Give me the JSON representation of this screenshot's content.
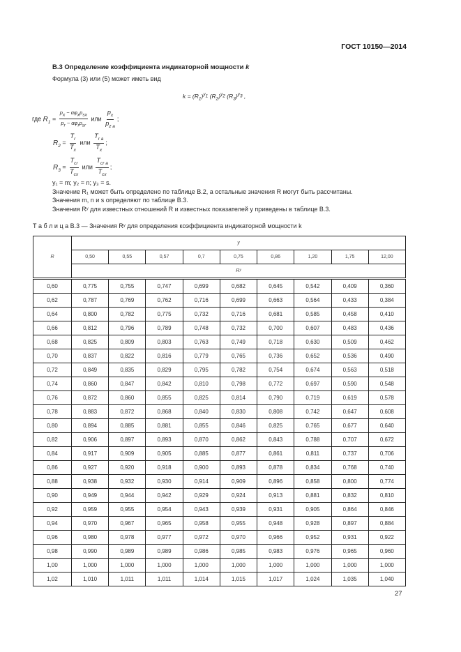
{
  "header": {
    "standard": "ГОСТ 10150—2014"
  },
  "section": {
    "heading": "В.3  Определение коэффициента индикаторной мощности ",
    "heading_var": "k",
    "intro": "Формула (3) или (5) может иметь вид",
    "main_formula": {
      "lhs": "k = (R",
      "s1": "1",
      "y1": "y",
      "y1s": "1",
      "m2": " (R",
      "s2": "2",
      "y2": "y",
      "y2s": "2",
      "m3": " (R",
      "s3": "3",
      "y3": "y",
      "y3s": "3",
      "tail": " ,"
    },
    "where": "где",
    "or": "или",
    "r1": {
      "name": "R",
      "sub": "1",
      "num": "p",
      "num_sub": "x",
      "num_mid": " − αφ",
      "num_mid_sub": "x",
      "num_end": "p",
      "num_end_sub": "sx",
      "den": "p",
      "den_sub": "r",
      "den_mid": " − αφ",
      "den_mid_sub": "r",
      "den_end": "p",
      "den_end_sub": "sr",
      "alt_num": "p",
      "alt_num_sub": "x",
      "alt_den": "p",
      "alt_den_sub": "z а"
    },
    "r2": {
      "name": "R",
      "sub": "2",
      "num": "T",
      "num_sub": "r",
      "den": "T",
      "den_sub": "x",
      "alt_num": "T",
      "alt_num_sub": "r а",
      "alt_den": "T",
      "alt_den_sub": "x"
    },
    "r3": {
      "name": "R",
      "sub": "3",
      "num": "T",
      "num_sub": "cr",
      "den": "T",
      "den_sub": "cx",
      "alt_num": "T",
      "alt_num_sub": "cr а",
      "alt_den": "T",
      "alt_den_sub": "cx"
    },
    "exponents": "y₁ = m; y₂ = n; y₃ = s.",
    "note1": "Значение R₁ может быть определено по таблице В.2, а остальные значения R могут быть рассчитаны.",
    "note2": "Значения m, n и s определяют по таблице В.3.",
    "note3": "Значения Rʸ для известных отношений R и известных показателей y приведены в таблице В.3."
  },
  "table": {
    "caption_label": "Т а б л и ц а  В.3",
    "caption_text": " — Значения Rʸ для определения коэффициента индикаторной мощности k",
    "row_header": "R",
    "y_header": "y",
    "ry_header": "Rʸ",
    "y_values": [
      "0,50",
      "0,55",
      "0,57",
      "0,7",
      "0,75",
      "0,86",
      "1,20",
      "1,75",
      "12,00"
    ],
    "rows": [
      [
        "0,60",
        "0,775",
        "0,755",
        "0,747",
        "0,699",
        "0,682",
        "0,645",
        "0,542",
        "0,409",
        "0,360"
      ],
      [
        "0,62",
        "0,787",
        "0,769",
        "0,762",
        "0,716",
        "0,699",
        "0,663",
        "0,564",
        "0,433",
        "0,384"
      ],
      [
        "0,64",
        "0,800",
        "0,782",
        "0,775",
        "0,732",
        "0,716",
        "0,681",
        "0,585",
        "0,458",
        "0,410"
      ],
      [
        "0,66",
        "0,812",
        "0,796",
        "0,789",
        "0,748",
        "0,732",
        "0,700",
        "0,607",
        "0,483",
        "0,436"
      ],
      [
        "0,68",
        "0,825",
        "0,809",
        "0,803",
        "0,763",
        "0,749",
        "0,718",
        "0,630",
        "0,509",
        "0,462"
      ],
      [
        "0,70",
        "0,837",
        "0,822",
        "0,816",
        "0,779",
        "0,765",
        "0,736",
        "0,652",
        "0,536",
        "0,490"
      ],
      [
        "0,72",
        "0,849",
        "0,835",
        "0,829",
        "0,795",
        "0,782",
        "0,754",
        "0,674",
        "0,563",
        "0,518"
      ],
      [
        "0,74",
        "0,860",
        "0,847",
        "0,842",
        "0,810",
        "0,798",
        "0,772",
        "0,697",
        "0,590",
        "0,548"
      ],
      [
        "0,76",
        "0,872",
        "0,860",
        "0,855",
        "0,825",
        "0,814",
        "0,790",
        "0,719",
        "0,619",
        "0,578"
      ],
      [
        "0,78",
        "0,883",
        "0,872",
        "0,868",
        "0,840",
        "0,830",
        "0,808",
        "0,742",
        "0,647",
        "0,608"
      ],
      [
        "0,80",
        "0,894",
        "0,885",
        "0,881",
        "0,855",
        "0,846",
        "0,825",
        "0,765",
        "0,677",
        "0,640"
      ],
      [
        "0,82",
        "0,906",
        "0,897",
        "0,893",
        "0,870",
        "0,862",
        "0,843",
        "0,788",
        "0,707",
        "0,672"
      ],
      [
        "0,84",
        "0,917",
        "0,909",
        "0,905",
        "0,885",
        "0,877",
        "0,861",
        "0,811",
        "0,737",
        "0,706"
      ],
      [
        "0,86",
        "0,927",
        "0,920",
        "0,918",
        "0,900",
        "0,893",
        "0,878",
        "0,834",
        "0,768",
        "0,740"
      ],
      [
        "0,88",
        "0,938",
        "0,932",
        "0,930",
        "0,914",
        "0,909",
        "0,896",
        "0,858",
        "0,800",
        "0,774"
      ],
      [
        "0,90",
        "0,949",
        "0,944",
        "0,942",
        "0,929",
        "0,924",
        "0,913",
        "0,881",
        "0,832",
        "0,810"
      ],
      [
        "0,92",
        "0,959",
        "0,955",
        "0,954",
        "0,943",
        "0,939",
        "0,931",
        "0,905",
        "0,864",
        "0,846"
      ],
      [
        "0,94",
        "0,970",
        "0,967",
        "0,965",
        "0,958",
        "0,955",
        "0,948",
        "0,928",
        "0,897",
        "0,884"
      ],
      [
        "0,96",
        "0,980",
        "0,978",
        "0,977",
        "0,972",
        "0,970",
        "0,966",
        "0,952",
        "0,931",
        "0,922"
      ],
      [
        "0,98",
        "0,990",
        "0,989",
        "0,989",
        "0,986",
        "0,985",
        "0,983",
        "0,976",
        "0,965",
        "0,960"
      ],
      [
        "1,00",
        "1,000",
        "1,000",
        "1,000",
        "1,000",
        "1,000",
        "1,000",
        "1,000",
        "1,000",
        "1,000"
      ],
      [
        "1,02",
        "1,010",
        "1,011",
        "1,011",
        "1,014",
        "1,015",
        "1,017",
        "1,024",
        "1,035",
        "1,040"
      ]
    ]
  },
  "footer": {
    "page_number": "27"
  }
}
